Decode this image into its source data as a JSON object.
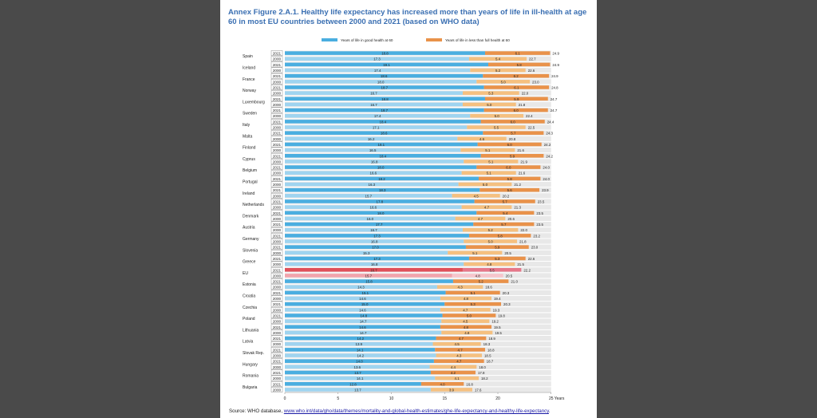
{
  "title": "Annex Figure 2.A.1. Healthy life expectancy has increased more than years of life in ill-health at age 60 in most EU countries between 2000 and 2021 (based on WHO data)",
  "source_prefix": "Source: WHO database, ",
  "source_link": "www.who.int/data/gho/data/themes/mortality-and-global-health-estimates/ghe-life-expectancy-and-healthy-life-expectancy",
  "source_suffix": ".",
  "colors": {
    "good_2021": "#4aaee0",
    "good_2000": "#9fd4f0",
    "ill_2021": "#e9924a",
    "ill_2000": "#f5c080",
    "eu_good_2021": "#e0505a",
    "eu_good_2000": "#f2a4ac",
    "eu_ill_2021": "#e6778a",
    "eu_ill_2000": "#f7c6cc",
    "row_bg": "#e8e8e8"
  },
  "chart_data": {
    "type": "bar",
    "orientation": "horizontal",
    "stacked": true,
    "legend_position": "top",
    "xlim": [
      0,
      25
    ],
    "xticks": [
      "0",
      "5",
      "10",
      "15",
      "20",
      "25"
    ],
    "x_unit": "Years",
    "series": [
      {
        "name": "Years of life in good health at 60"
      },
      {
        "name": "Years of life in less than full health at 60"
      }
    ],
    "countries": [
      {
        "name": "Spain",
        "y2021": [
          18.8,
          6.1,
          "24.9"
        ],
        "y2000": [
          17.3,
          5.4,
          "22.7"
        ]
      },
      {
        "name": "Iceland",
        "y2021": [
          19.1,
          5.8,
          "24.9"
        ],
        "y2000": [
          17.4,
          5.2,
          "22.6"
        ]
      },
      {
        "name": "France",
        "y2021": [
          18.6,
          6.2,
          "24.9"
        ],
        "y2000": [
          18.0,
          5.0,
          "23.0"
        ]
      },
      {
        "name": "Norway",
        "y2021": [
          18.7,
          6.1,
          "24.8"
        ],
        "y2000": [
          16.7,
          5.3,
          "22.0"
        ]
      },
      {
        "name": "Luxembourg",
        "y2021": [
          18.8,
          5.9,
          "24.7"
        ],
        "y2000": [
          16.7,
          5.0,
          "21.8"
        ]
      },
      {
        "name": "Sweden",
        "y2021": [
          18.7,
          6.0,
          "24.7"
        ],
        "y2000": [
          17.4,
          5.0,
          "22.4"
        ]
      },
      {
        "name": "Italy",
        "y2021": [
          18.4,
          6.0,
          "24.4"
        ],
        "y2000": [
          17.1,
          5.5,
          "22.5"
        ]
      },
      {
        "name": "Malta",
        "y2021": [
          18.6,
          5.7,
          "24.3"
        ],
        "y2000": [
          16.2,
          4.6,
          "20.8"
        ]
      },
      {
        "name": "Finland",
        "y2021": [
          18.1,
          6.0,
          "24.2"
        ],
        "y2000": [
          16.5,
          5.1,
          "21.6"
        ]
      },
      {
        "name": "Cyprus",
        "y2021": [
          18.4,
          5.9,
          "24.2"
        ],
        "y2000": [
          16.8,
          5.1,
          "21.9"
        ]
      },
      {
        "name": "Belgium",
        "y2021": [
          18.0,
          6.0,
          "24.0"
        ],
        "y2000": [
          16.6,
          5.1,
          "21.6"
        ]
      },
      {
        "name": "Portugal",
        "y2021": [
          18.2,
          5.8,
          "24.0"
        ],
        "y2000": [
          16.3,
          5.0,
          "21.2"
        ]
      },
      {
        "name": "Ireland",
        "y2021": [
          18.3,
          5.6,
          "23.9"
        ],
        "y2000": [
          15.7,
          4.5,
          "20.2"
        ]
      },
      {
        "name": "Netherlands",
        "y2021": [
          17.8,
          5.7,
          "23.5"
        ],
        "y2000": [
          16.6,
          4.7,
          "21.3"
        ]
      },
      {
        "name": "Denmark",
        "y2021": [
          18.0,
          5.4,
          "23.5"
        ],
        "y2000": [
          16.0,
          4.7,
          "20.6"
        ]
      },
      {
        "name": "Austria",
        "y2021": [
          17.7,
          5.7,
          "23.5"
        ],
        "y2000": [
          16.7,
          5.2,
          "22.0"
        ]
      },
      {
        "name": "Germany",
        "y2021": [
          17.3,
          5.8,
          "23.2"
        ],
        "y2000": [
          16.8,
          5.0,
          "21.8"
        ]
      },
      {
        "name": "Slovenia",
        "y2021": [
          17.0,
          5.9,
          "23.0"
        ],
        "y2000": [
          15.3,
          5.1,
          "20.5"
        ]
      },
      {
        "name": "Greece",
        "y2021": [
          17.3,
          5.3,
          "22.6"
        ],
        "y2000": [
          16.8,
          4.8,
          "21.5"
        ]
      },
      {
        "name": "EU",
        "y2021": [
          16.7,
          5.5,
          "22.2"
        ],
        "y2000": [
          15.7,
          4.8,
          "20.5"
        ]
      },
      {
        "name": "Estonia",
        "y2021": [
          15.8,
          5.2,
          "21.0"
        ],
        "y2000": [
          14.3,
          4.3,
          "18.6"
        ]
      },
      {
        "name": "Croatia",
        "y2021": [
          15.1,
          5.1,
          "20.3"
        ],
        "y2000": [
          14.6,
          4.8,
          "19.4"
        ]
      },
      {
        "name": "Czechia",
        "y2021": [
          15.0,
          5.3,
          "20.3"
        ],
        "y2000": [
          14.6,
          4.7,
          "19.3"
        ]
      },
      {
        "name": "Poland",
        "y2021": [
          14.8,
          5.0,
          "19.8"
        ],
        "y2000": [
          14.7,
          4.5,
          "19.2"
        ]
      },
      {
        "name": "Lithuania",
        "y2021": [
          14.6,
          4.8,
          "19.5"
        ],
        "y2000": [
          14.7,
          4.8,
          "19.5"
        ]
      },
      {
        "name": "Latvia",
        "y2021": [
          14.2,
          4.7,
          "18.9"
        ],
        "y2000": [
          13.9,
          4.5,
          "18.3"
        ]
      },
      {
        "name": "Slovak Rep.",
        "y2021": [
          14.1,
          4.7,
          "18.8"
        ],
        "y2000": [
          14.2,
          4.3,
          "18.5"
        ]
      },
      {
        "name": "Hungary",
        "y2021": [
          14.0,
          4.7,
          "18.7"
        ],
        "y2000": [
          13.6,
          4.4,
          "18.0"
        ]
      },
      {
        "name": "Romania",
        "y2021": [
          13.7,
          4.2,
          "17.8"
        ],
        "y2000": [
          14.1,
          4.1,
          "18.2"
        ]
      },
      {
        "name": "Bulgaria",
        "y2021": [
          12.8,
          4.0,
          "16.8"
        ],
        "y2000": [
          13.7,
          3.9,
          "17.6"
        ]
      }
    ]
  }
}
